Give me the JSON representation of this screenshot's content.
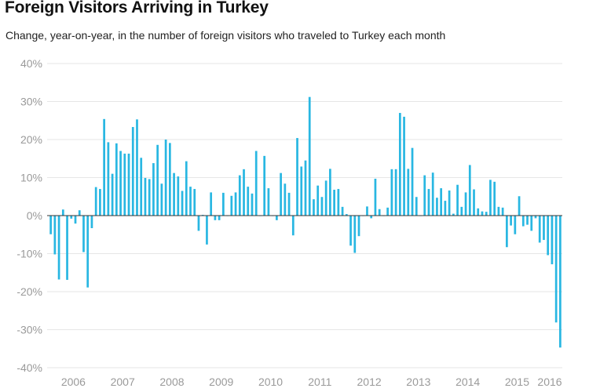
{
  "chart_data": {
    "type": "bar",
    "title": "Foreign Visitors Arriving in Turkey",
    "subtitle": "Change, year-on-year, in the number of foreign visitors who traveled to Turkey each month",
    "ylim": [
      -40,
      40
    ],
    "y_ticks": [
      40,
      30,
      20,
      10,
      0,
      -10,
      -20,
      -30,
      -40
    ],
    "y_tick_labels": [
      "40%",
      "30%",
      "20%",
      "10%",
      "0%",
      "-10%",
      "-20%",
      "-30%",
      "-40%"
    ],
    "x_tick_labels": [
      "2006",
      "2007",
      "2008",
      "2009",
      "2010",
      "2011",
      "2012",
      "2013",
      "2014",
      "2015",
      "2016"
    ],
    "grid": true,
    "bar_color": "#29b7e2",
    "start_month": "2006-01",
    "series": [
      {
        "values": [
          -4.9,
          -10.2,
          -16.8,
          1.6,
          -16.9,
          -0.8,
          -2.1,
          1.4,
          -9.6,
          -18.9,
          -3.3,
          7.5,
          7.0,
          25.4,
          19.3,
          11.0,
          19.0,
          17.0,
          16.3,
          16.3,
          23.3,
          25.3,
          15.2,
          9.9,
          9.6,
          13.8,
          18.6,
          8.4,
          20.0,
          19.1,
          11.2,
          10.3,
          6.5,
          14.3,
          7.6,
          7.0,
          -4.0,
          0.2,
          -7.6,
          6.1,
          -1.2,
          -1.2,
          6.0,
          0.0,
          5.2,
          6.1,
          10.6,
          12.2,
          7.6,
          5.8,
          17.0,
          0.0,
          15.7,
          7.2,
          0.0,
          -1.2,
          11.2,
          8.4,
          6.0,
          -5.2,
          20.4,
          12.9,
          14.5,
          31.2,
          4.3,
          7.9,
          4.9,
          9.2,
          12.3,
          6.8,
          7.0,
          2.3,
          0.4,
          -7.9,
          -9.8,
          -5.4,
          0.0,
          2.4,
          -0.7,
          9.7,
          1.7,
          0.0,
          2.1,
          12.2,
          12.2,
          27.0,
          26.0,
          12.3,
          17.8,
          4.9,
          0.0,
          10.6,
          7.0,
          11.3,
          4.7,
          7.2,
          3.9,
          6.6,
          0.5,
          8.1,
          2.3,
          6.1,
          13.3,
          6.9,
          1.9,
          1.1,
          1.0,
          9.4,
          8.9,
          2.3,
          2.1,
          -8.3,
          -2.6,
          -4.9,
          5.1,
          -2.8,
          -2.4,
          -4.0,
          -0.7,
          -7.1,
          -6.4,
          -10.4,
          -12.8,
          -28.1,
          -34.7
        ]
      }
    ]
  }
}
